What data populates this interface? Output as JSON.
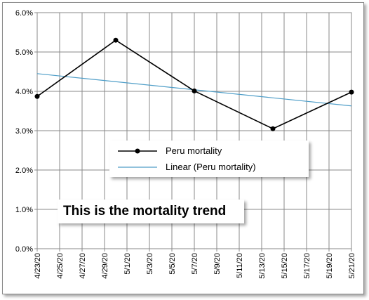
{
  "chart_data": {
    "type": "line",
    "title": "",
    "xlabel": "",
    "ylabel": "",
    "y_ticks": [
      "0.0%",
      "1.0%",
      "2.0%",
      "3.0%",
      "4.0%",
      "5.0%",
      "6.0%"
    ],
    "ylim": [
      0,
      6
    ],
    "x_ticks": [
      "4/23/20",
      "4/25/20",
      "4/27/20",
      "4/29/20",
      "5/1/20",
      "5/3/20",
      "5/5/20",
      "5/7/20",
      "5/9/20",
      "5/11/20",
      "5/13/20",
      "5/15/20",
      "5/17/20",
      "5/19/20",
      "5/21/20"
    ],
    "xlim": [
      "4/23/20",
      "5/21/20"
    ],
    "grid": true,
    "series": [
      {
        "name": "Peru mortality",
        "color": "#000000",
        "marker": "circle",
        "x": [
          "4/23/20",
          "4/30/20",
          "5/7/20",
          "5/14/20",
          "5/21/20"
        ],
        "y": [
          3.87,
          5.3,
          4.01,
          3.05,
          3.98
        ]
      },
      {
        "name": "Linear (Peru mortality)",
        "color": "#4f9ec8",
        "marker": "none",
        "x": [
          "4/23/20",
          "5/21/20"
        ],
        "y": [
          4.45,
          3.63
        ]
      }
    ],
    "legend": {
      "placement": "center",
      "entries": [
        "Peru mortality",
        "Linear (Peru mortality)"
      ]
    },
    "annotation": "This is the mortality trend"
  }
}
